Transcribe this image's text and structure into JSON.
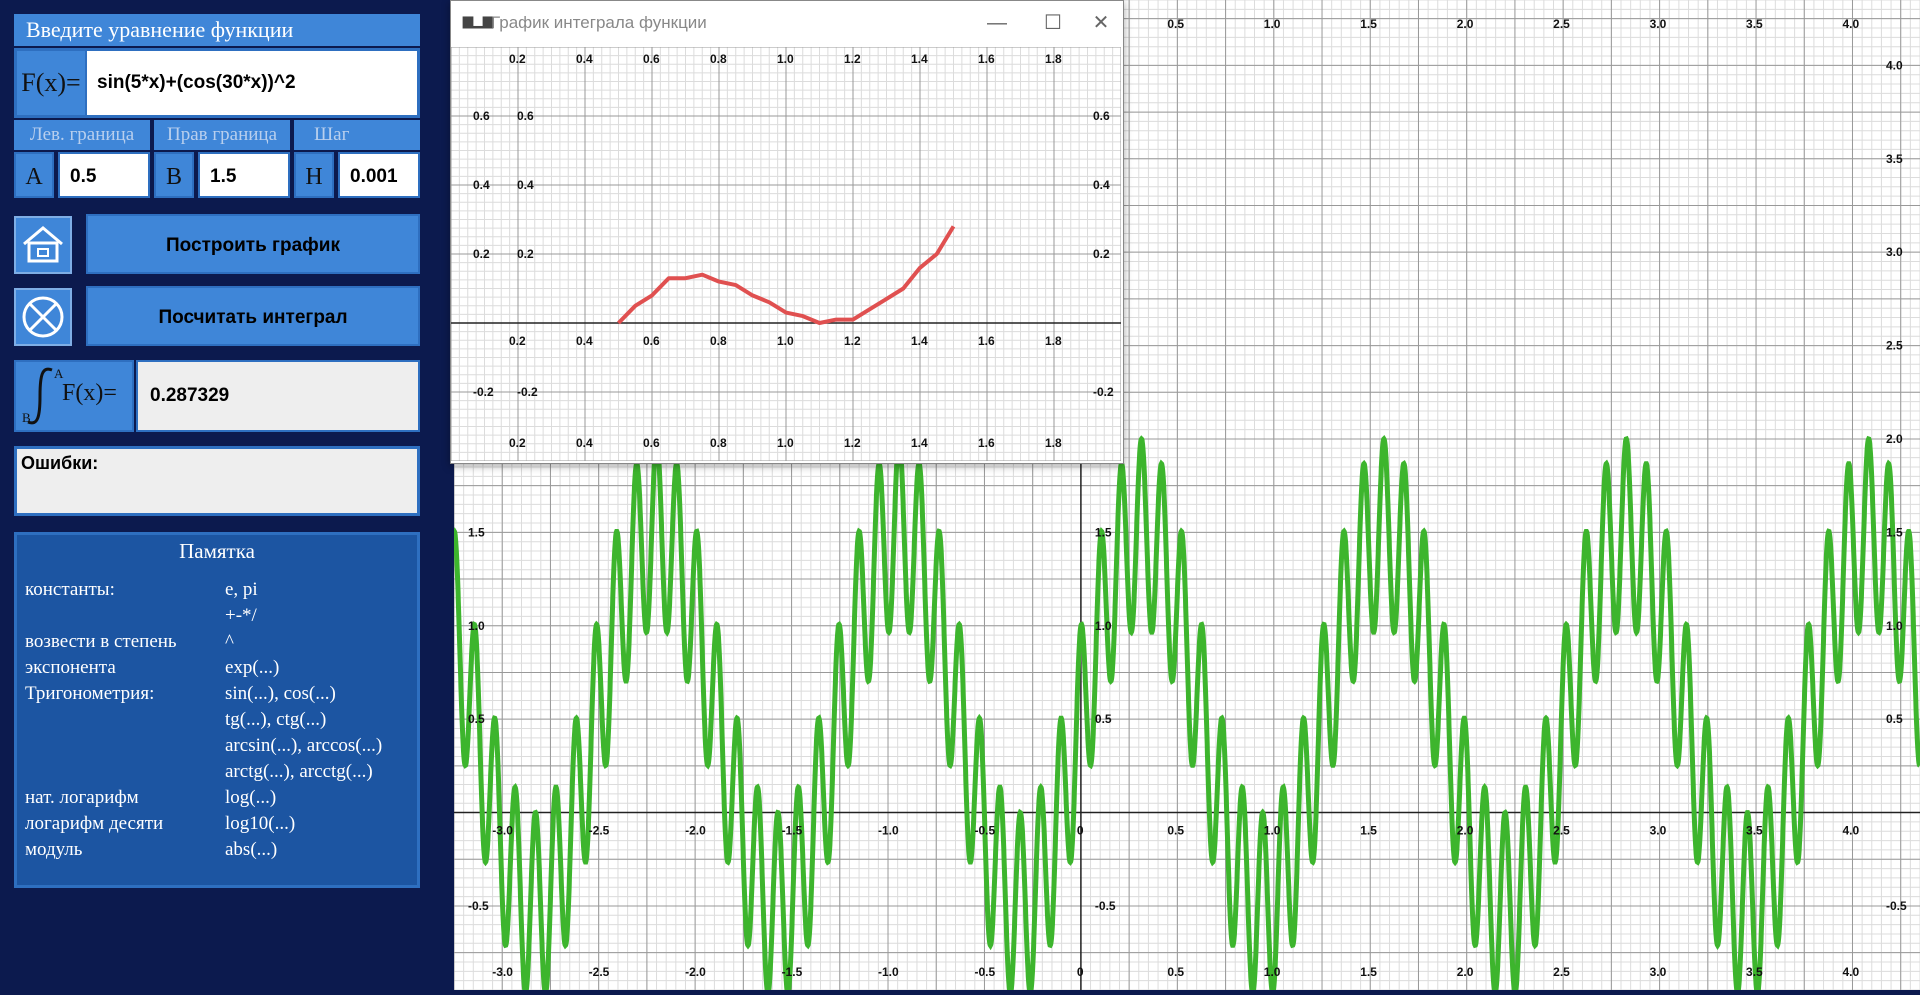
{
  "left": {
    "title": "Введите уравнение функции",
    "fx_label": "F(x)=",
    "fx_value": "sin(5*x)+(cos(30*x))^2",
    "labels": {
      "left_bound": "Лев. граница",
      "right_bound": "Прав граница",
      "step": "Шаг"
    },
    "params": [
      {
        "key": "A",
        "value": "0.5"
      },
      {
        "key": "B",
        "value": "1.5"
      },
      {
        "key": "H",
        "value": "0.001"
      }
    ],
    "build_button": "Построить график",
    "integral_button": "Посчитать интеграл",
    "integral_label": "F(x)=",
    "integral_upper": "A",
    "integral_lower": "B",
    "integral_value": "0.287329",
    "errors_label": "Ошибки:",
    "memo_title": "Памятка",
    "memo_rows": [
      {
        "name": "константы:",
        "value": "e, pi"
      },
      {
        "name": "",
        "value": "+-*/"
      },
      {
        "name": "возвести в степень",
        "value": "^"
      },
      {
        "name": "экспонента",
        "value": "exp(...)"
      },
      {
        "name": "Тригонометрия:",
        "value": "sin(...), cos(...)"
      },
      {
        "name": "",
        "value": "tg(...), ctg(...)"
      },
      {
        "name": "",
        "value": "arcsin(...), arccos(...)"
      },
      {
        "name": "",
        "value": "arctg(...), arcctg(...)"
      },
      {
        "name": "нат. логарифм",
        "value": "log(...)"
      },
      {
        "name": "логарифм десяти",
        "value": "log10(...)"
      },
      {
        "name": "модуль",
        "value": "abs(...)"
      }
    ],
    "icons": {
      "home": "home-icon",
      "clear": "clear-circle-icon",
      "integral": "integral-icon"
    }
  },
  "popup": {
    "title": "График интеграла функции",
    "icon": "chart-icon",
    "controls": [
      "minimize-icon",
      "maximize-icon",
      "close-icon"
    ]
  },
  "chart_data": [
    {
      "type": "line",
      "title": "",
      "xlabel": "",
      "ylabel": "",
      "series": [
        {
          "color": "#3db52d",
          "function": "sin(5*x)+(cos(30*x))^2"
        }
      ],
      "xlim": [
        -3.25,
        4.35
      ],
      "ylim": [
        -0.95,
        4.35
      ],
      "x_ticks": [
        -3.0,
        -2.5,
        -2.0,
        -1.5,
        -1.0,
        -0.5,
        0,
        0.5,
        1.0,
        1.5,
        2.0,
        2.5,
        3.0,
        3.5,
        4.0
      ],
      "y_ticks": [
        -0.5,
        0.5,
        1.0,
        1.5,
        2.0,
        2.5,
        3.0,
        3.5,
        4.0
      ],
      "grid": true
    },
    {
      "type": "line",
      "title": "",
      "xlabel": "",
      "ylabel": "",
      "series": [
        {
          "color": "#e05050",
          "x": [
            0.5,
            0.55,
            0.6,
            0.65,
            0.7,
            0.75,
            0.8,
            0.85,
            0.9,
            0.95,
            1.0,
            1.05,
            1.1,
            1.15,
            1.2,
            1.25,
            1.3,
            1.35,
            1.4,
            1.45,
            1.5
          ],
          "y": [
            0,
            0.05,
            0.08,
            0.13,
            0.13,
            0.14,
            0.12,
            0.11,
            0.08,
            0.06,
            0.03,
            0.02,
            0.0,
            0.01,
            0.01,
            0.04,
            0.07,
            0.1,
            0.16,
            0.2,
            0.28
          ]
        }
      ],
      "xlim": [
        0,
        2
      ],
      "ylim": [
        -0.4,
        0.8
      ],
      "x_ticks": [
        0.2,
        0.4,
        0.6,
        0.8,
        1.0,
        1.2,
        1.4,
        1.6,
        1.8
      ],
      "y_ticks": [
        -0.2,
        0.2,
        0.4,
        0.6
      ],
      "grid": true
    }
  ]
}
